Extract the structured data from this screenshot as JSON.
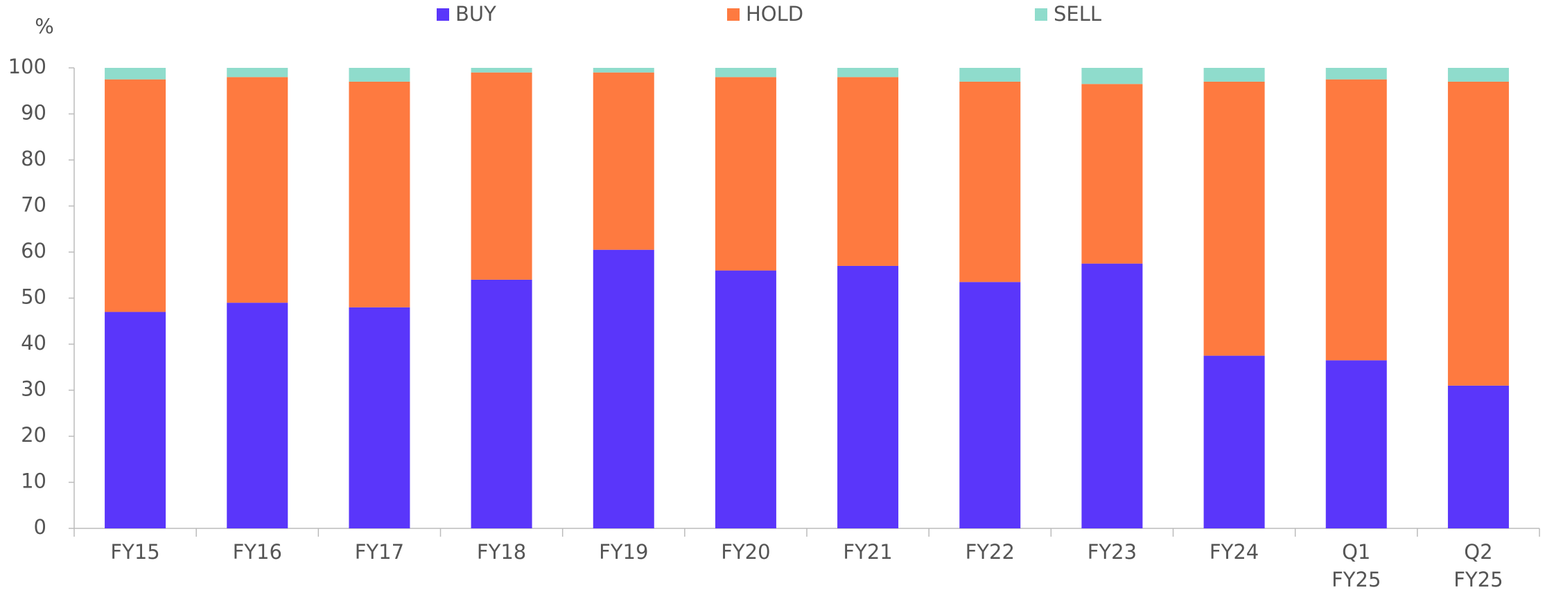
{
  "chart_data": {
    "type": "stacked_bar",
    "y_axis_label": "%",
    "categories": [
      "FY15",
      "FY16",
      "FY17",
      "FY18",
      "FY19",
      "FY20",
      "FY21",
      "FY22",
      "FY23",
      "FY24",
      "Q1 FY25",
      "Q2 FY25"
    ],
    "series": [
      {
        "name": "BUY",
        "color": "#5a36fa",
        "values": [
          47,
          49,
          48,
          54,
          60.5,
          56,
          57,
          53.5,
          57.5,
          37.5,
          36.5,
          31
        ]
      },
      {
        "name": "HOLD",
        "color": "#fe7a40",
        "values": [
          50.5,
          49,
          49,
          45,
          38.5,
          42,
          41,
          43.5,
          39,
          59.5,
          61,
          66
        ]
      },
      {
        "name": "SELL",
        "color": "#8fdccc",
        "values": [
          2.5,
          2,
          3,
          1,
          1,
          2,
          2,
          3,
          3.5,
          3,
          2.5,
          3
        ]
      }
    ],
    "ylim": [
      0,
      100
    ],
    "yticks": [
      0,
      10,
      20,
      30,
      40,
      50,
      60,
      70,
      80,
      90,
      100
    ],
    "grid": false,
    "legend": "top"
  }
}
